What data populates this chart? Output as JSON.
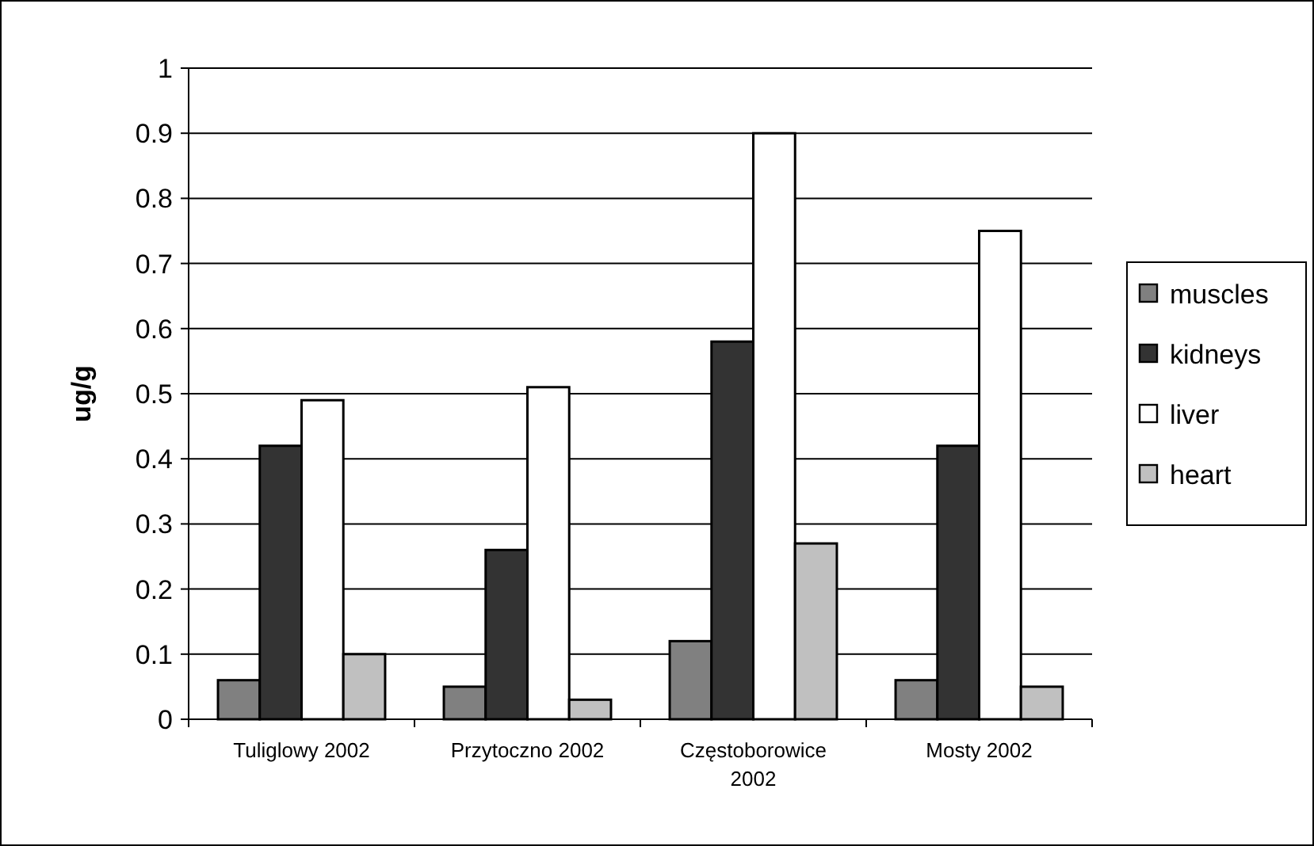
{
  "chart_data": {
    "type": "bar",
    "ylabel": "ug/g",
    "categories": [
      "Tuliglowy 2002",
      "Przytoczno 2002",
      "Częstoborowice 2002",
      "Mosty 2002"
    ],
    "series": [
      {
        "name": "muscles",
        "color": "#808080",
        "values": [
          0.06,
          0.05,
          0.12,
          0.06
        ]
      },
      {
        "name": "kidneys",
        "color": "#333333",
        "values": [
          0.42,
          0.26,
          0.58,
          0.42
        ]
      },
      {
        "name": "liver",
        "color": "#ffffff",
        "values": [
          0.49,
          0.51,
          0.9,
          0.75
        ]
      },
      {
        "name": "heart",
        "color": "#c0c0c0",
        "values": [
          0.1,
          0.03,
          0.27,
          0.05
        ]
      }
    ],
    "ylim": [
      0,
      1
    ],
    "yticks": [
      0,
      0.1,
      0.2,
      0.3,
      0.4,
      0.5,
      0.6,
      0.7,
      0.8,
      0.9,
      1
    ],
    "grid": "y",
    "legend": "right"
  }
}
